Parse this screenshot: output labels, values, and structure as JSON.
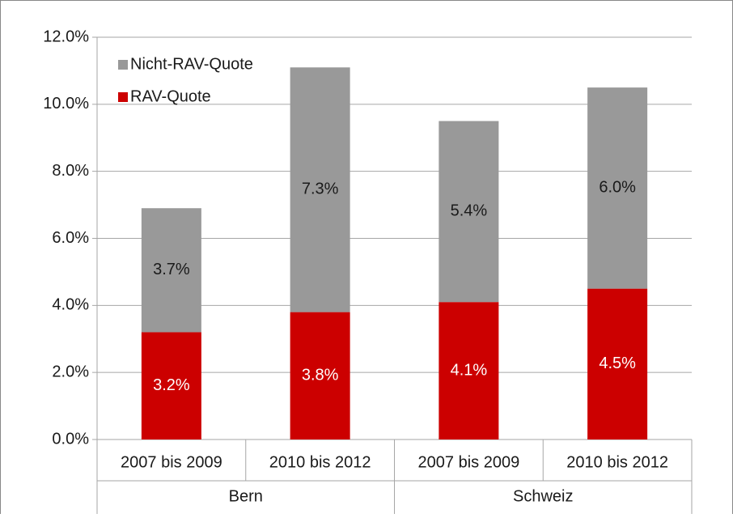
{
  "chart_data": {
    "type": "stacked-bar",
    "categories": [
      "2007 bis 2009",
      "2010 bis 2012",
      "2007 bis 2009",
      "2010 bis 2012"
    ],
    "category_groups": [
      "Bern",
      "Schweiz"
    ],
    "series": [
      {
        "name": "RAV-Quote",
        "color": "#cc0000",
        "label_color": "#ffffff",
        "values": [
          3.2,
          3.8,
          4.1,
          4.5
        ],
        "value_labels": [
          "3.2%",
          "3.8%",
          "4.1%",
          "4.5%"
        ]
      },
      {
        "name": "Nicht-RAV-Quote",
        "color": "#999999",
        "label_color": "#1a1a1a",
        "values": [
          3.7,
          7.3,
          5.4,
          6.0
        ],
        "value_labels": [
          "3.7%",
          "7.3%",
          "5.4%",
          "6.0%"
        ]
      }
    ],
    "ylim": [
      0,
      12
    ],
    "yticks": [
      {
        "value": 0,
        "label": "0.0%"
      },
      {
        "value": 2,
        "label": "2.0%"
      },
      {
        "value": 4,
        "label": "4.0%"
      },
      {
        "value": 6,
        "label": "6.0%"
      },
      {
        "value": 8,
        "label": "8.0%"
      },
      {
        "value": 10,
        "label": "10.0%"
      },
      {
        "value": 12,
        "label": "12.0%"
      }
    ],
    "grid": true,
    "legend": "top-left"
  }
}
